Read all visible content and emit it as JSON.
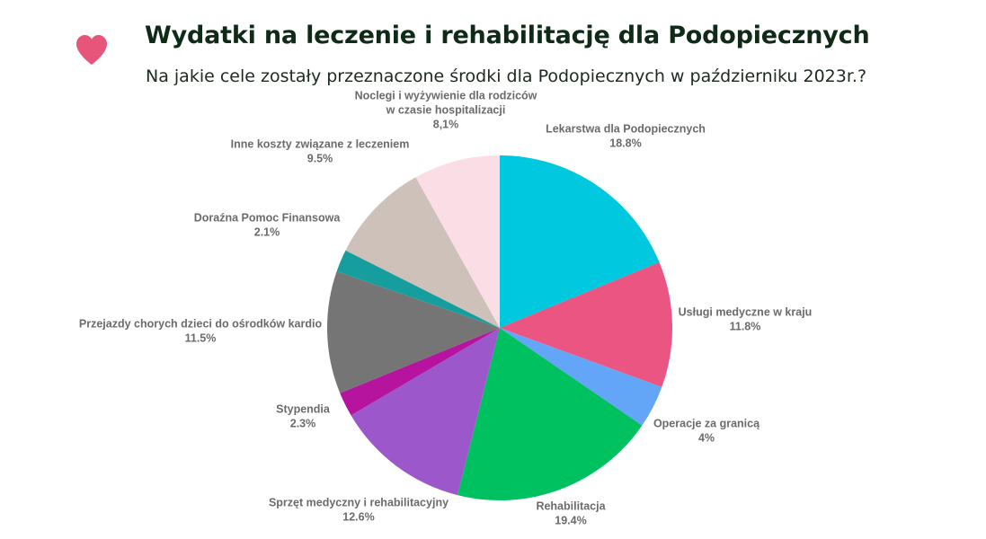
{
  "header": {
    "title": "Wydatki na leczenie i rehabilitację dla Podopiecznych",
    "subtitle": "Na jakie cele zostały przeznaczone środki dla Podopiecznych w październiku 2023r.?",
    "icon": "heart-icon",
    "icon_color": "#e8557a"
  },
  "chart_data": {
    "type": "pie",
    "title": "Wydatki na leczenie i rehabilitację dla Podopiecznych",
    "subtitle": "Na jakie cele zostały przeznaczone środki dla Podopiecznych w październiku 2023r.?",
    "start": "12 o'clock, clockwise",
    "slices": [
      {
        "label": [
          "Lekarstwa dla Podopiecznych"
        ],
        "value": 18.8,
        "value_label": "18.8%",
        "color": "#00c8de"
      },
      {
        "label": [
          "Usługi medyczne w kraju"
        ],
        "value": 11.8,
        "value_label": "11.8%",
        "color": "#ea5581"
      },
      {
        "label": [
          "Operacje za granicą"
        ],
        "value": 4,
        "value_label": "4%",
        "color": "#63a6f8"
      },
      {
        "label": [
          "Rehabilitacja"
        ],
        "value": 19.4,
        "value_label": "19.4%",
        "color": "#00c160"
      },
      {
        "label": [
          "Sprzęt medyczny i rehabilitacyjny"
        ],
        "value": 12.6,
        "value_label": "12.6%",
        "color": "#9c57cb"
      },
      {
        "label": [
          "Stypendia"
        ],
        "value": 2.3,
        "value_label": "2.3%",
        "color": "#b6149f"
      },
      {
        "label": [
          "Przejazdy chorych dzieci do ośrodków kardio"
        ],
        "value": 11.5,
        "value_label": "11.5%",
        "color": "#757575"
      },
      {
        "label": [
          "Doraźna Pomoc Finansowa"
        ],
        "value": 2.1,
        "value_label": "2.1%",
        "color": "#169e9e"
      },
      {
        "label": [
          "Inne koszty związane z leczeniem"
        ],
        "value": 9.5,
        "value_label": "9.5%",
        "color": "#cdc1b9"
      },
      {
        "label": [
          "Noclegi i wyżywienie dla rodziców",
          "w czasie hospitalizacji"
        ],
        "value": 8.1,
        "value_label": "8,1%",
        "color": "#fadde5"
      }
    ]
  }
}
